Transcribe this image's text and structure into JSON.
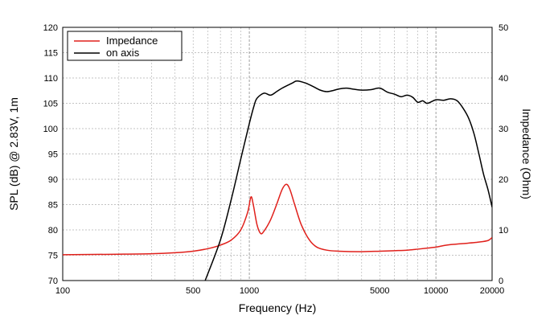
{
  "chart_data": {
    "type": "line",
    "x_scale": "log",
    "xlabel": "Frequency (Hz)",
    "ylabel_left": "SPL (dB) @ 2.83V, 1m",
    "ylabel_right": "Impedance (Ohm)",
    "xlim": [
      100,
      20000
    ],
    "ylim_left": [
      70,
      120
    ],
    "ylim_right": [
      0,
      50
    ],
    "x_ticks": [
      100,
      500,
      1000,
      5000,
      10000,
      20000
    ],
    "x_tick_labels": [
      "100",
      "500",
      "1000",
      "5000",
      "10000",
      "20000"
    ],
    "y_left_ticks": [
      70,
      75,
      80,
      85,
      90,
      95,
      100,
      105,
      110,
      115,
      120
    ],
    "y_right_ticks": [
      0,
      10,
      20,
      30,
      40,
      50
    ],
    "grid": true,
    "legend_position": "top-left",
    "series": [
      {
        "name": "Impedance",
        "axis": "right",
        "color": "#e0201b",
        "points": [
          [
            100,
            5.1
          ],
          [
            200,
            5.2
          ],
          [
            300,
            5.3
          ],
          [
            400,
            5.5
          ],
          [
            500,
            5.8
          ],
          [
            600,
            6.3
          ],
          [
            700,
            7.0
          ],
          [
            800,
            8.0
          ],
          [
            900,
            10.0
          ],
          [
            980,
            13.5
          ],
          [
            1020,
            16.5
          ],
          [
            1050,
            15.0
          ],
          [
            1100,
            11.0
          ],
          [
            1150,
            9.3
          ],
          [
            1200,
            9.8
          ],
          [
            1300,
            12.0
          ],
          [
            1400,
            15.0
          ],
          [
            1500,
            18.0
          ],
          [
            1580,
            19.0
          ],
          [
            1650,
            18.0
          ],
          [
            1750,
            15.0
          ],
          [
            1900,
            11.0
          ],
          [
            2100,
            8.0
          ],
          [
            2300,
            6.6
          ],
          [
            2600,
            6.0
          ],
          [
            3000,
            5.8
          ],
          [
            4000,
            5.7
          ],
          [
            5000,
            5.8
          ],
          [
            6000,
            5.9
          ],
          [
            7000,
            6.0
          ],
          [
            8000,
            6.2
          ],
          [
            9000,
            6.4
          ],
          [
            10000,
            6.6
          ],
          [
            11000,
            6.9
          ],
          [
            12000,
            7.1
          ],
          [
            14000,
            7.3
          ],
          [
            17000,
            7.6
          ],
          [
            19000,
            7.9
          ],
          [
            20000,
            8.5
          ]
        ]
      },
      {
        "name": "on axis",
        "axis": "left",
        "color": "#000000",
        "points": [
          [
            580,
            70
          ],
          [
            700,
            78
          ],
          [
            800,
            86
          ],
          [
            900,
            94
          ],
          [
            1000,
            101
          ],
          [
            1060,
            104.5
          ],
          [
            1100,
            106
          ],
          [
            1200,
            107
          ],
          [
            1300,
            106.6
          ],
          [
            1400,
            107.3
          ],
          [
            1500,
            108
          ],
          [
            1700,
            109
          ],
          [
            1800,
            109.4
          ],
          [
            2000,
            109
          ],
          [
            2200,
            108.3
          ],
          [
            2400,
            107.6
          ],
          [
            2600,
            107.3
          ],
          [
            2800,
            107.5
          ],
          [
            3000,
            107.8
          ],
          [
            3300,
            108
          ],
          [
            3600,
            107.8
          ],
          [
            4000,
            107.6
          ],
          [
            4500,
            107.7
          ],
          [
            5000,
            108
          ],
          [
            5500,
            107.2
          ],
          [
            6000,
            106.8
          ],
          [
            6500,
            106.3
          ],
          [
            7000,
            106.6
          ],
          [
            7500,
            106.2
          ],
          [
            8000,
            105.2
          ],
          [
            8500,
            105.5
          ],
          [
            9000,
            105
          ],
          [
            10000,
            105.7
          ],
          [
            11000,
            105.6
          ],
          [
            12000,
            105.9
          ],
          [
            13000,
            105.5
          ],
          [
            14000,
            104
          ],
          [
            15000,
            102
          ],
          [
            16000,
            99
          ],
          [
            17000,
            95
          ],
          [
            18000,
            91
          ],
          [
            19000,
            88
          ],
          [
            20000,
            84.5
          ]
        ]
      }
    ]
  }
}
